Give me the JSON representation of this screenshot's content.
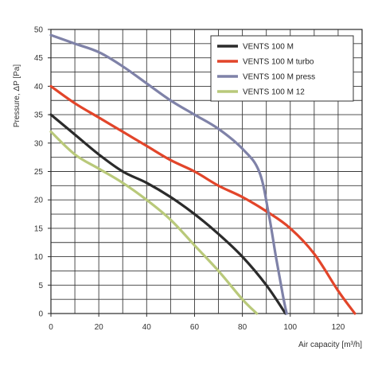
{
  "chart_data": {
    "type": "line",
    "xlabel": "Air capacity [m³/h]",
    "ylabel": "Pressure, ΔP [Pa]",
    "xlim": [
      0,
      130
    ],
    "ylim": [
      0,
      50
    ],
    "x_ticks": [
      0,
      20,
      40,
      60,
      80,
      100,
      120
    ],
    "y_ticks": [
      0,
      5,
      10,
      15,
      20,
      25,
      30,
      35,
      40,
      45,
      50
    ],
    "x_grid_step": 10,
    "y_grid_step": 2.5,
    "grid": true,
    "legend_position": "top-right",
    "series": [
      {
        "name": "VENTS 100 M",
        "color": "#2b2b2b",
        "points": [
          [
            0,
            35
          ],
          [
            10,
            31.5
          ],
          [
            20,
            28
          ],
          [
            30,
            25
          ],
          [
            40,
            23
          ],
          [
            50,
            20.5
          ],
          [
            60,
            17.5
          ],
          [
            70,
            14
          ],
          [
            80,
            10
          ],
          [
            90,
            5
          ],
          [
            98,
            0
          ]
        ]
      },
      {
        "name": "VENTS 100 M turbo",
        "color": "#e2452a",
        "points": [
          [
            0,
            40
          ],
          [
            10,
            37
          ],
          [
            20,
            34.5
          ],
          [
            30,
            32
          ],
          [
            40,
            29.5
          ],
          [
            50,
            27
          ],
          [
            60,
            25
          ],
          [
            70,
            22.5
          ],
          [
            80,
            20.5
          ],
          [
            90,
            18
          ],
          [
            100,
            15
          ],
          [
            110,
            10.5
          ],
          [
            120,
            4
          ],
          [
            127,
            0
          ]
        ]
      },
      {
        "name": "VENTS 100 M press",
        "color": "#7f82a8",
        "points": [
          [
            0,
            49
          ],
          [
            10,
            47.5
          ],
          [
            20,
            46
          ],
          [
            30,
            43.5
          ],
          [
            40,
            40.5
          ],
          [
            50,
            37.5
          ],
          [
            60,
            35
          ],
          [
            70,
            32.5
          ],
          [
            80,
            29
          ],
          [
            87,
            25
          ],
          [
            91,
            17.5
          ],
          [
            94,
            10
          ],
          [
            97,
            3
          ],
          [
            98.5,
            0
          ]
        ]
      },
      {
        "name": "VENTS 100 M 12",
        "color": "#b9c97a",
        "points": [
          [
            0,
            32
          ],
          [
            10,
            28
          ],
          [
            20,
            25.5
          ],
          [
            30,
            23
          ],
          [
            40,
            20
          ],
          [
            50,
            16.5
          ],
          [
            60,
            12
          ],
          [
            70,
            7.5
          ],
          [
            80,
            2.5
          ],
          [
            86,
            0
          ]
        ]
      }
    ]
  }
}
